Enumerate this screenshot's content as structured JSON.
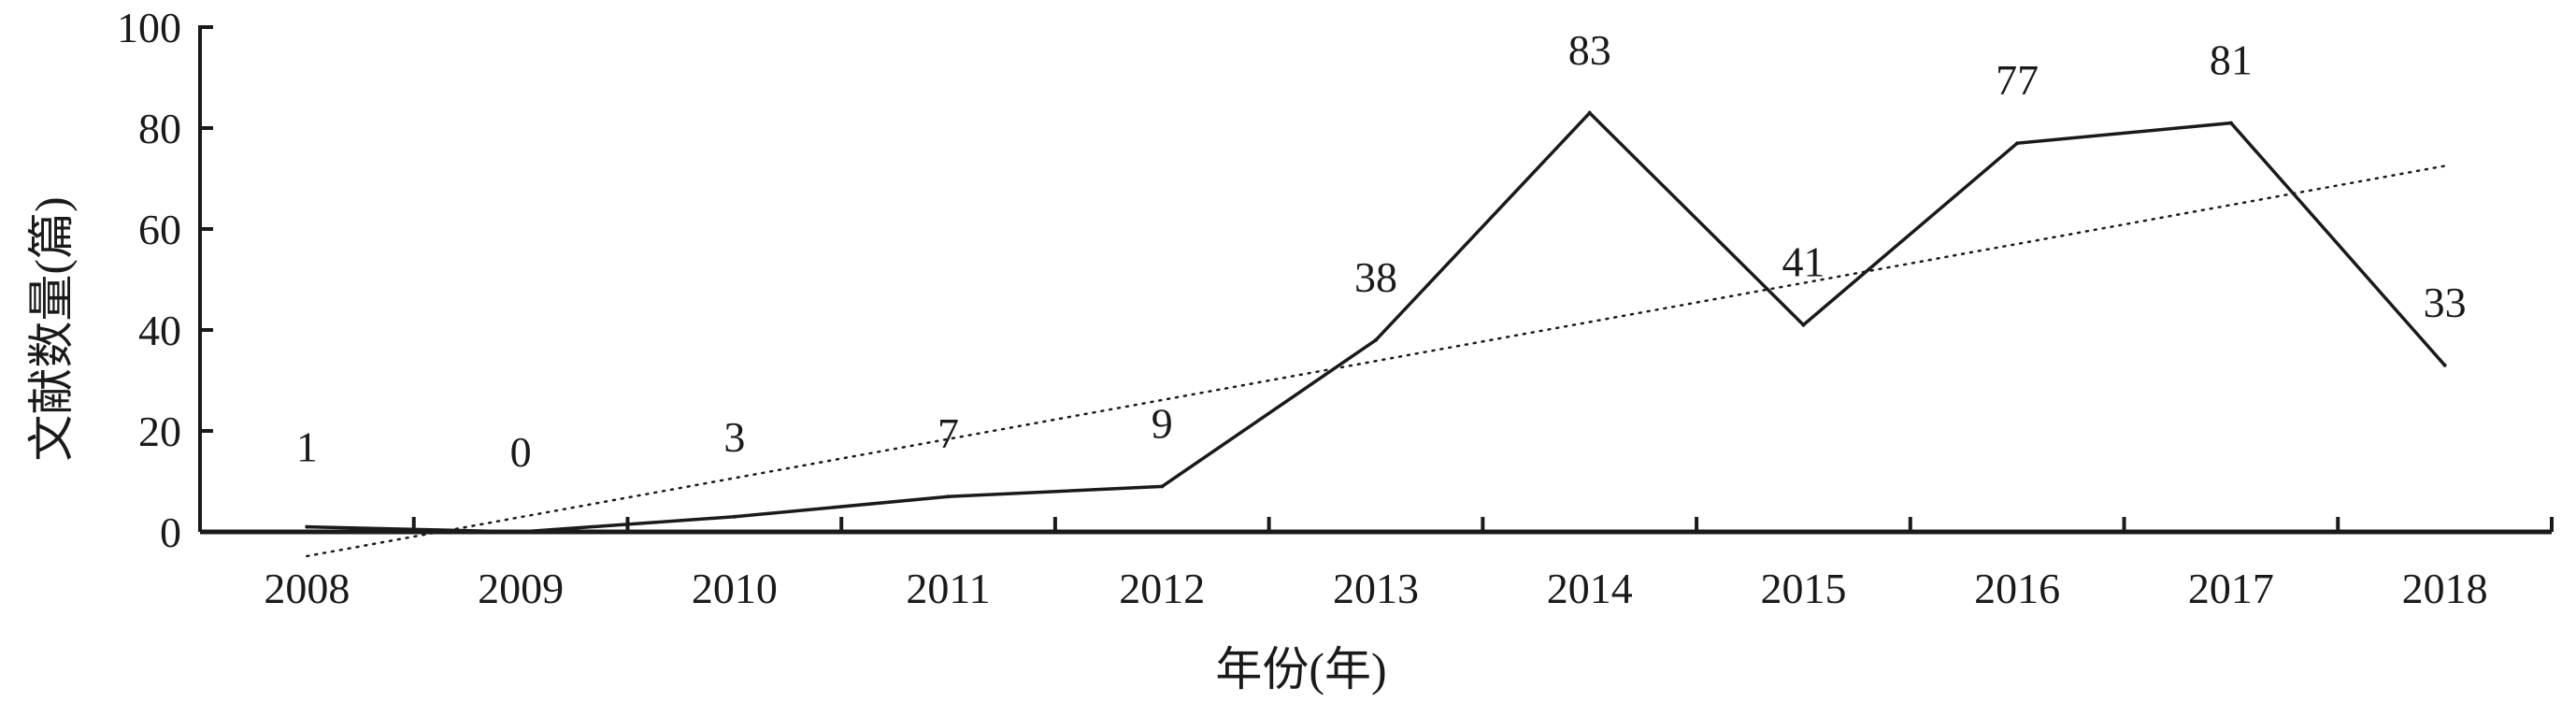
{
  "chart_data": {
    "type": "line",
    "categories": [
      "2008",
      "2009",
      "2010",
      "2011",
      "2012",
      "2013",
      "2014",
      "2015",
      "2016",
      "2017",
      "2018"
    ],
    "series": [
      {
        "values": [
          1,
          0,
          3,
          7,
          9,
          38,
          83,
          41,
          77,
          81,
          33
        ]
      }
    ],
    "data_labels": [
      "1",
      "0",
      "3",
      "7",
      "9",
      "38",
      "83",
      "41",
      "77",
      "81",
      "33"
    ],
    "trendline": {
      "type": "linear",
      "style": "dotted",
      "start_value": -4.8,
      "end_value": 72.5
    },
    "xlabel": "年份(年)",
    "ylabel": "文献数量(篇)",
    "ylim": [
      0,
      100
    ],
    "yticks": [
      "0",
      "20",
      "40",
      "60",
      "80",
      "100"
    ],
    "grid": false,
    "line_color": "#1a1a1a"
  }
}
